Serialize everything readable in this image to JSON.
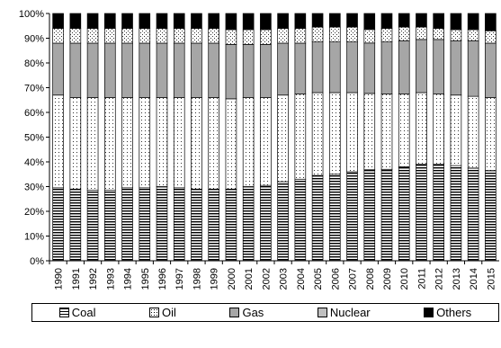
{
  "chart_data": {
    "type": "bar",
    "stacked": "percent",
    "title": "",
    "xlabel": "",
    "ylabel": "",
    "ylim": [
      0,
      100
    ],
    "y_ticks": [
      "0%",
      "10%",
      "20%",
      "30%",
      "40%",
      "50%",
      "60%",
      "70%",
      "80%",
      "90%",
      "100%"
    ],
    "grid": false,
    "legend_position": "bottom",
    "categories": [
      "1990",
      "1991",
      "1992",
      "1993",
      "1994",
      "1995",
      "1996",
      "1997",
      "1998",
      "1999",
      "2000",
      "2001",
      "2002",
      "2003",
      "2004",
      "2005",
      "2006",
      "2007",
      "2008",
      "2009",
      "2010",
      "2011",
      "2012",
      "2013",
      "2014",
      "2015"
    ],
    "series": [
      {
        "name": "Coal",
        "fill": "horizontal-hatch",
        "values": [
          29.5,
          29,
          28.5,
          28.5,
          29.5,
          29.5,
          30,
          29.5,
          29,
          29,
          29,
          30,
          30.5,
          32,
          33,
          34.5,
          35,
          36,
          37,
          37,
          38,
          39,
          39,
          38.5,
          37.5,
          36.5
        ]
      },
      {
        "name": "Oil",
        "fill": "dotted",
        "values": [
          37.5,
          37,
          37.5,
          37.5,
          36.5,
          36.5,
          36,
          36.5,
          37,
          37,
          36.5,
          36,
          35.5,
          35,
          34.5,
          33.5,
          33,
          32,
          31,
          30.5,
          29.5,
          29,
          28.5,
          28.5,
          29,
          29.5
        ]
      },
      {
        "name": "Gas",
        "fill": "gray",
        "values": [
          21,
          22,
          22,
          22,
          22,
          22,
          22,
          22,
          22,
          22,
          22,
          21.5,
          21.5,
          21,
          20.5,
          20.5,
          20.5,
          20.5,
          20.5,
          21,
          21.5,
          21.5,
          22,
          22,
          22.5,
          22
        ]
      },
      {
        "name": "Nuclear",
        "fill": "cross-hatch",
        "values": [
          6,
          6,
          6,
          6,
          6,
          6,
          6,
          6,
          6,
          6,
          6,
          6,
          6,
          6,
          6,
          6,
          6,
          6,
          5.5,
          5.5,
          5.5,
          5,
          4.5,
          4.5,
          4.5,
          5
        ]
      },
      {
        "name": "Others",
        "fill": "black",
        "values": [
          6,
          6,
          6,
          6,
          6,
          6,
          6,
          6,
          6,
          6,
          6.5,
          6.5,
          6.5,
          6,
          6,
          5.5,
          5.5,
          5.5,
          6.5,
          6,
          5.5,
          5.5,
          6,
          6.5,
          6.5,
          7
        ]
      }
    ]
  }
}
